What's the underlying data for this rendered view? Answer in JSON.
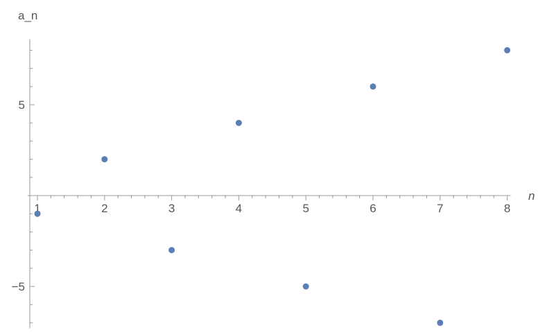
{
  "chart_data": {
    "type": "scatter",
    "title": "",
    "xlabel": "n",
    "ylabel": "a_n",
    "xlim": [
      1,
      8.05
    ],
    "ylim": [
      -7.3,
      8.6
    ],
    "x_ticks": [
      1,
      2,
      3,
      4,
      5,
      6,
      7,
      8
    ],
    "x_tick_labels": [
      "1",
      "2",
      "3",
      "4",
      "5",
      "6",
      "7",
      "8"
    ],
    "y_ticks": [
      -5,
      5
    ],
    "y_tick_labels": [
      "−5",
      "5"
    ],
    "grid": false,
    "legend": "none",
    "series": [
      {
        "color": "#5b7fb4",
        "points": [
          {
            "x": 1,
            "y": -1
          },
          {
            "x": 2,
            "y": 2
          },
          {
            "x": 3,
            "y": -3
          },
          {
            "x": 4,
            "y": 4
          },
          {
            "x": 5,
            "y": -5
          },
          {
            "x": 6,
            "y": 6
          },
          {
            "x": 7,
            "y": -7
          },
          {
            "x": 8,
            "y": 8
          }
        ]
      }
    ]
  }
}
